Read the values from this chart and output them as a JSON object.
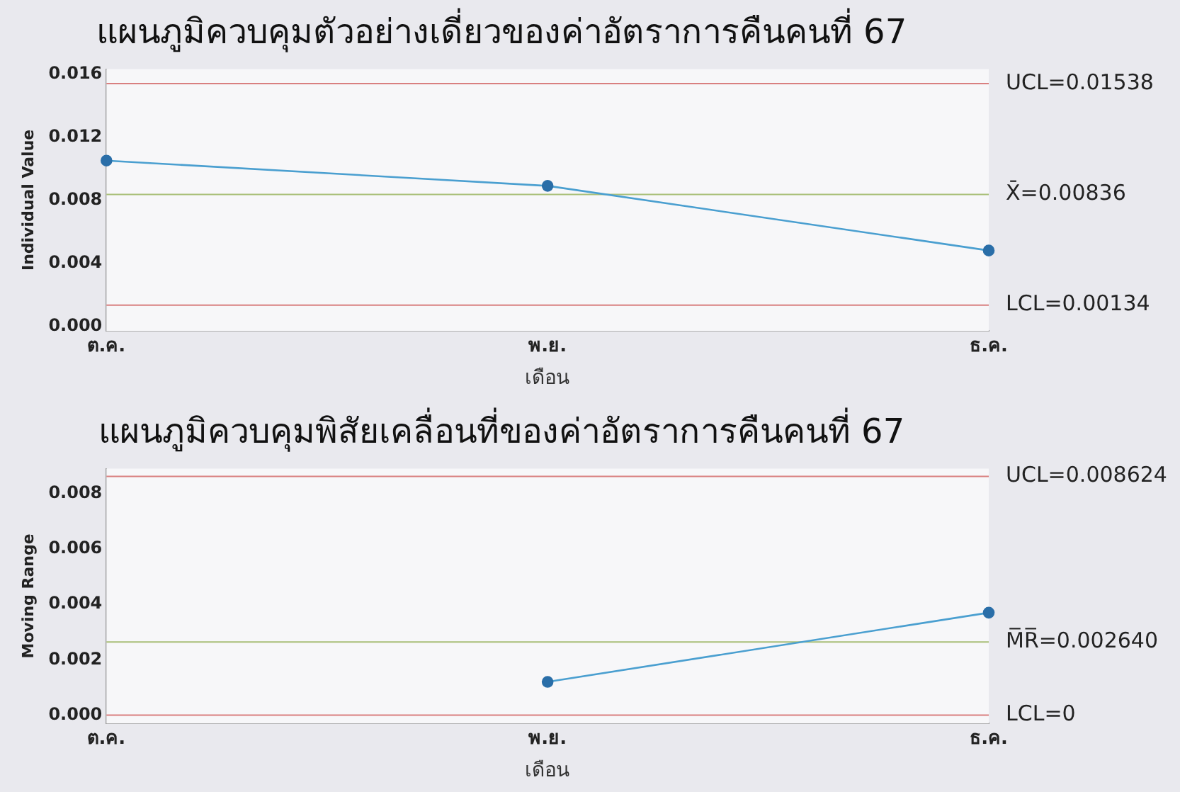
{
  "chart_data": [
    {
      "type": "line",
      "title": "แผนภูมิควบคุมตัวอย่างเดี่ยวของค่าอัตราการคืนคนที่ 67",
      "xlabel": "เดือน",
      "ylabel": "Individual Value",
      "categories": [
        "ต.ค.",
        "พ.ย.",
        "ธ.ค."
      ],
      "series": [
        {
          "color": "#4a9fd0",
          "values": [
            0.0105,
            0.0089,
            0.0048
          ]
        }
      ],
      "ylim": [
        -0.0003,
        0.0163
      ],
      "yticks": [
        {
          "value": 0,
          "label": "0.000"
        },
        {
          "value": 0.004,
          "label": "0.004"
        },
        {
          "value": 0.008,
          "label": "0.008"
        },
        {
          "value": 0.012,
          "label": "0.012"
        },
        {
          "value": 0.016,
          "label": "0.016"
        }
      ],
      "ref_lines": [
        {
          "axis": "y",
          "value": 0.01538,
          "label": "UCL=0.01538",
          "color": "#d98080"
        },
        {
          "axis": "y",
          "value": 0.00836,
          "label": "X̄=0.00836",
          "color": "#a9bf78"
        },
        {
          "axis": "y",
          "value": 0.00134,
          "label": "LCL=0.00134",
          "color": "#d98080"
        }
      ],
      "grid": false,
      "legend": false,
      "marker": "circle",
      "line_style": "solid"
    },
    {
      "type": "line",
      "title": "แผนภูมิควบคุมพิสัยเคลื่อนที่ของค่าอัตราการคืนคนที่ 67",
      "xlabel": "เดือน",
      "ylabel": "Moving Range",
      "categories": [
        "ต.ค.",
        "พ.ย.",
        "ธ.ค."
      ],
      "series": [
        {
          "color": "#4a9fd0",
          "values": [
            null,
            0.0012,
            0.0037
          ]
        }
      ],
      "ylim": [
        -0.0003,
        0.0089
      ],
      "yticks": [
        {
          "value": 0,
          "label": "0.000"
        },
        {
          "value": 0.002,
          "label": "0.002"
        },
        {
          "value": 0.004,
          "label": "0.004"
        },
        {
          "value": 0.006,
          "label": "0.006"
        },
        {
          "value": 0.008,
          "label": "0.008"
        }
      ],
      "ref_lines": [
        {
          "axis": "y",
          "value": 0.008624,
          "label": "UCL=0.008624",
          "color": "#d98080"
        },
        {
          "axis": "y",
          "value": 0.00264,
          "label": "M̅R̅=0.002640",
          "color": "#a9bf78"
        },
        {
          "axis": "y",
          "value": 0,
          "label": "LCL=0",
          "color": "#d98080"
        }
      ],
      "grid": false,
      "legend": false,
      "marker": "circle",
      "line_style": "solid"
    }
  ]
}
